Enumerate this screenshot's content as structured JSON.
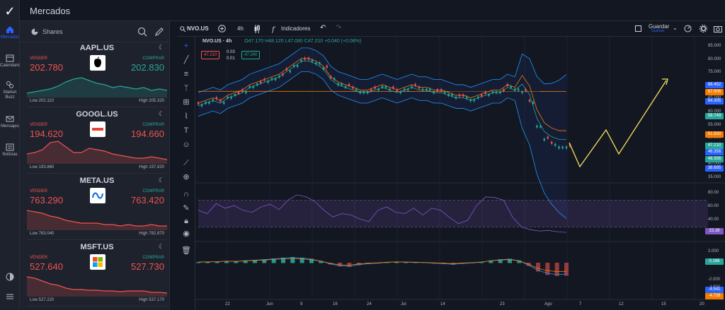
{
  "header": {
    "title": "Mercados"
  },
  "rail": {
    "items": [
      {
        "label": "Mercados"
      },
      {
        "label": "Calendario"
      },
      {
        "label": "Market Buzz"
      },
      {
        "label": "Mensajes"
      },
      {
        "label": "Noticias"
      }
    ]
  },
  "watchlist": {
    "title": "Shares",
    "sell_label": "VENDER",
    "buy_label": "COMPRAR",
    "cards": [
      {
        "symbol": "AAPL.US",
        "sell": "202.780",
        "buy": "202.830",
        "low": "Low 202.110",
        "high": "High 205.320",
        "color": "#26a69a",
        "spark": [
          30,
          28,
          26,
          24,
          20,
          14,
          10,
          8,
          12,
          16,
          18,
          22,
          20,
          22,
          24,
          22,
          26,
          24,
          26
        ]
      },
      {
        "symbol": "GOOGL.US",
        "sell": "194.620",
        "buy": "194.660",
        "low": "Low 193.860",
        "high": "High 197.820",
        "color": "#ef5350",
        "spark": [
          22,
          20,
          16,
          6,
          4,
          12,
          20,
          20,
          14,
          16,
          18,
          22,
          24,
          26,
          28,
          28,
          26,
          28,
          30
        ]
      },
      {
        "symbol": "META.US",
        "sell": "763.290",
        "buy": "763.420",
        "low": "Low 763.040",
        "high": "High 782.870",
        "color": "#ef5350",
        "spark": [
          8,
          10,
          12,
          16,
          18,
          22,
          24,
          26,
          26,
          26,
          28,
          28,
          30,
          28,
          30,
          30,
          28,
          30,
          30
        ]
      },
      {
        "symbol": "MSFT.US",
        "sell": "527.640",
        "buy": "527.730",
        "low": "Low 527.220",
        "high": "High 537.170",
        "color": "#ef5350",
        "spark": [
          8,
          10,
          14,
          18,
          20,
          24,
          26,
          26,
          27,
          27,
          28,
          28,
          29,
          28,
          28,
          28,
          30,
          30,
          31
        ]
      }
    ]
  },
  "toolbar": {
    "symbol": "NVO.US",
    "interval": "4h",
    "indicators_label": "Indicadores",
    "save_label": "Guardar",
    "save_sub": "Guardar"
  },
  "legend": {
    "title": "NVO.US · 4h",
    "o": "O47.170",
    "h": "H48.120",
    "l": "L47.080",
    "c": "C47.210",
    "change": "+0.040 (+0.08%)",
    "sell_box": "47.210",
    "buy_box": "47.240",
    "spread_top": "0.03",
    "spread_bottom": "0.01"
  },
  "price_axis": [
    "85.000",
    "80.000",
    "75.000",
    "70.000",
    "65.000",
    "60.000",
    "55.000",
    "50.000",
    "45.000",
    "40.000",
    "35.000"
  ],
  "price_tags": [
    {
      "label": "68.452",
      "color": "#2962ff"
    },
    {
      "label": "67.906",
      "color": "#f57c00"
    },
    {
      "label": "64.305",
      "color": "#2962ff"
    },
    {
      "label": "58.749",
      "color": "#26a69a"
    },
    {
      "label": "51.500",
      "color": "#f57c00"
    },
    {
      "label": "47.210",
      "color": "#26a69a"
    },
    {
      "label": "46.356",
      "color": "#2962ff"
    },
    {
      "label": "46.356",
      "color": "#26a69a"
    },
    {
      "label": "38.695",
      "color": "#2962ff"
    }
  ],
  "rsi_axis": [
    "80.00",
    "60.00",
    "40.00"
  ],
  "rsi_tag": "22.28",
  "macd_axis": [
    "2.000",
    "-2.000",
    "-4.000"
  ],
  "macd_tags": [
    "0.186",
    "-4.541",
    "-4.726"
  ],
  "time_axis": [
    "22",
    "Jun",
    "9",
    "16",
    "24",
    "Jul",
    "14",
    "23",
    "Ago",
    "7",
    "12",
    "15",
    "20"
  ]
}
